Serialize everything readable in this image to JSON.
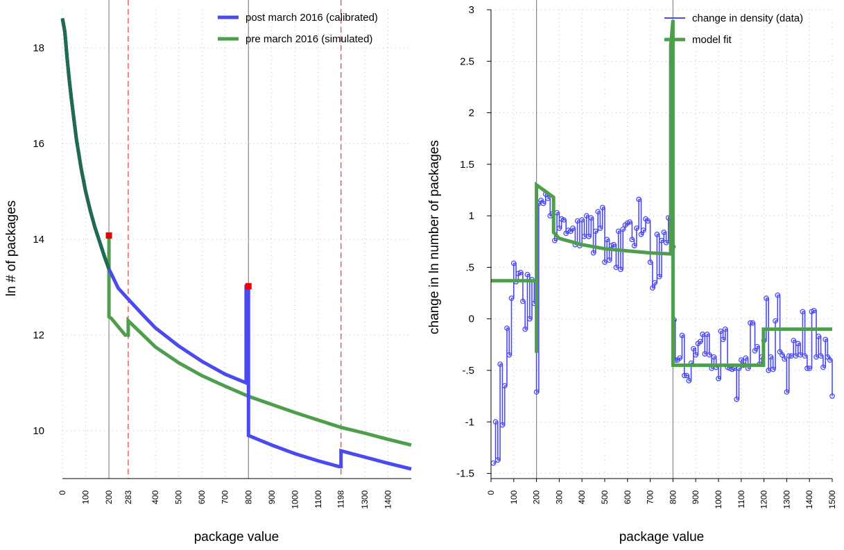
{
  "colors": {
    "post": "#4a4af0",
    "pre": "#4e9e4e",
    "shared": "#1e6b4e",
    "marker": "#ee0000",
    "vline": "#888888",
    "dashed": "#ee4444",
    "grid": "#bbbbbb"
  },
  "chart_data": [
    {
      "type": "line",
      "xlabel": "package value",
      "ylabel": "ln # of packages",
      "xlim": [
        0,
        1500
      ],
      "ylim": [
        9.0,
        18.8
      ],
      "xticks": [
        0,
        100,
        200,
        283,
        400,
        500,
        600,
        700,
        800,
        900,
        1000,
        1100,
        1198,
        1300,
        1400
      ],
      "yticks": [
        10,
        12,
        14,
        16,
        18
      ],
      "grid": true,
      "legend_position": "top-right",
      "vlines_solid": [
        200,
        800
      ],
      "vlines_dashed": [
        283,
        1198
      ],
      "series": [
        {
          "name": "post march 2016 (calibrated)",
          "color": "#4a4af0",
          "points": [
            [
              0,
              18.62
            ],
            [
              10,
              18.35
            ],
            [
              20,
              17.8
            ],
            [
              30,
              17.3
            ],
            [
              40,
              16.88
            ],
            [
              60,
              16.1
            ],
            [
              80,
              15.5
            ],
            [
              100,
              15.0
            ],
            [
              120,
              14.6
            ],
            [
              140,
              14.25
            ],
            [
              160,
              13.95
            ],
            [
              180,
              13.65
            ],
            [
              200,
              13.38
            ],
            [
              240,
              12.98
            ],
            [
              283,
              12.75
            ],
            [
              350,
              12.4
            ],
            [
              400,
              12.15
            ],
            [
              500,
              11.77
            ],
            [
              600,
              11.45
            ],
            [
              700,
              11.18
            ],
            [
              790,
              11.0
            ],
            [
              790,
              13.02
            ],
            [
              800,
              13.02
            ],
            [
              800,
              9.9
            ],
            [
              900,
              9.7
            ],
            [
              1000,
              9.52
            ],
            [
              1100,
              9.37
            ],
            [
              1190,
              9.25
            ],
            [
              1198,
              9.25
            ],
            [
              1198,
              9.58
            ],
            [
              1300,
              9.45
            ],
            [
              1400,
              9.32
            ],
            [
              1500,
              9.2
            ]
          ]
        },
        {
          "name": "pre march 2016 (simulated)",
          "color": "#4e9e4e",
          "points": [
            [
              0,
              18.62
            ],
            [
              10,
              18.35
            ],
            [
              20,
              17.8
            ],
            [
              30,
              17.3
            ],
            [
              40,
              16.88
            ],
            [
              60,
              16.1
            ],
            [
              80,
              15.5
            ],
            [
              100,
              15.0
            ],
            [
              120,
              14.6
            ],
            [
              140,
              14.25
            ],
            [
              160,
              13.95
            ],
            [
              180,
              13.65
            ],
            [
              200,
              13.38
            ],
            [
              200,
              14.08
            ],
            [
              200,
              12.38
            ],
            [
              210,
              12.35
            ],
            [
              270,
              12.0
            ],
            [
              283,
              12.0
            ],
            [
              283,
              12.3
            ],
            [
              300,
              12.22
            ],
            [
              400,
              11.75
            ],
            [
              500,
              11.42
            ],
            [
              600,
              11.15
            ],
            [
              700,
              10.93
            ],
            [
              800,
              10.72
            ],
            [
              900,
              10.55
            ],
            [
              1000,
              10.38
            ],
            [
              1100,
              10.22
            ],
            [
              1198,
              10.07
            ],
            [
              1300,
              9.95
            ],
            [
              1400,
              9.82
            ],
            [
              1500,
              9.7
            ]
          ]
        }
      ],
      "markers": [
        [
          200,
          14.08
        ],
        [
          800,
          13.02
        ]
      ]
    },
    {
      "type": "scatter",
      "xlabel": "package value",
      "ylabel": "change in ln number of packages",
      "xlim": [
        0,
        1500
      ],
      "ylim": [
        -1.55,
        3.0
      ],
      "xticks": [
        0,
        100,
        200,
        300,
        400,
        500,
        600,
        700,
        800,
        900,
        1000,
        1100,
        1200,
        1300,
        1400,
        1500
      ],
      "yticks": [
        -1.5,
        -1,
        -0.5,
        0,
        0.5,
        1,
        1.5,
        2,
        2.5,
        3
      ],
      "ytick_labels": [
        "-1.5",
        "-1",
        "-.5",
        "0",
        ".5",
        "1",
        "1.5",
        "2",
        "2.5",
        "3"
      ],
      "grid": true,
      "legend_position": "top-right",
      "vlines_solid": [
        200,
        800
      ],
      "series": [
        {
          "name": "change in density (data)",
          "color": "#4a4af0",
          "points": [
            [
              10,
              -1.4
            ],
            [
              20,
              -1.0
            ],
            [
              30,
              -1.37
            ],
            [
              40,
              -0.44
            ],
            [
              50,
              -1.03
            ],
            [
              60,
              -0.65
            ],
            [
              70,
              -0.09
            ],
            [
              80,
              -0.35
            ],
            [
              90,
              0.2
            ],
            [
              100,
              0.54
            ],
            [
              110,
              0.36
            ],
            [
              120,
              0.44
            ],
            [
              130,
              0.45
            ],
            [
              140,
              0.17
            ],
            [
              150,
              -0.1
            ],
            [
              160,
              0.43
            ],
            [
              170,
              0.0
            ],
            [
              180,
              0.38
            ],
            [
              190,
              0.15
            ],
            [
              200,
              -0.71
            ],
            [
              210,
              1.12
            ],
            [
              220,
              1.15
            ],
            [
              230,
              1.12
            ],
            [
              240,
              1.21
            ],
            [
              250,
              1.17
            ],
            [
              260,
              1.0
            ],
            [
              270,
              1.02
            ],
            [
              280,
              0.76
            ],
            [
              290,
              1.03
            ],
            [
              300,
              0.88
            ],
            [
              310,
              0.97
            ],
            [
              320,
              0.96
            ],
            [
              330,
              0.83
            ],
            [
              340,
              0.86
            ],
            [
              350,
              0.85
            ],
            [
              360,
              0.88
            ],
            [
              370,
              0.72
            ],
            [
              380,
              0.95
            ],
            [
              390,
              0.71
            ],
            [
              400,
              0.96
            ],
            [
              410,
              0.8
            ],
            [
              420,
              1.0
            ],
            [
              430,
              0.8
            ],
            [
              440,
              0.98
            ],
            [
              450,
              0.64
            ],
            [
              460,
              0.85
            ],
            [
              470,
              1.04
            ],
            [
              480,
              0.88
            ],
            [
              490,
              1.08
            ],
            [
              500,
              0.55
            ],
            [
              510,
              0.77
            ],
            [
              520,
              0.57
            ],
            [
              530,
              0.71
            ],
            [
              540,
              0.72
            ],
            [
              550,
              0.5
            ],
            [
              560,
              0.85
            ],
            [
              570,
              0.48
            ],
            [
              580,
              0.87
            ],
            [
              590,
              0.91
            ],
            [
              600,
              0.93
            ],
            [
              610,
              0.94
            ],
            [
              620,
              0.77
            ],
            [
              630,
              0.71
            ],
            [
              640,
              0.88
            ],
            [
              650,
              1.16
            ],
            [
              660,
              0.82
            ],
            [
              670,
              0.86
            ],
            [
              680,
              0.97
            ],
            [
              690,
              0.95
            ],
            [
              700,
              0.55
            ],
            [
              710,
              0.3
            ],
            [
              720,
              0.35
            ],
            [
              730,
              0.82
            ],
            [
              740,
              0.41
            ],
            [
              750,
              0.76
            ],
            [
              760,
              0.84
            ],
            [
              770,
              0.74
            ],
            [
              780,
              0.98
            ],
            [
              790,
              0.98
            ],
            [
              800,
              0.7
            ],
            [
              805,
              -0.01
            ],
            [
              810,
              -0.4
            ],
            [
              820,
              -0.4
            ],
            [
              830,
              -0.38
            ],
            [
              840,
              -0.16
            ],
            [
              850,
              -0.55
            ],
            [
              860,
              -0.55
            ],
            [
              870,
              -0.6
            ],
            [
              880,
              -0.43
            ],
            [
              890,
              -0.29
            ],
            [
              900,
              -0.35
            ],
            [
              910,
              -0.24
            ],
            [
              920,
              -0.22
            ],
            [
              930,
              -0.15
            ],
            [
              940,
              -0.34
            ],
            [
              950,
              -0.15
            ],
            [
              960,
              -0.35
            ],
            [
              970,
              -0.48
            ],
            [
              980,
              -0.37
            ],
            [
              990,
              -0.47
            ],
            [
              1000,
              -0.58
            ],
            [
              1010,
              -0.12
            ],
            [
              1020,
              -0.2
            ],
            [
              1030,
              -0.1
            ],
            [
              1040,
              -0.47
            ],
            [
              1050,
              -0.48
            ],
            [
              1060,
              -0.49
            ],
            [
              1070,
              -0.48
            ],
            [
              1080,
              -0.78
            ],
            [
              1090,
              -0.48
            ],
            [
              1100,
              -0.4
            ],
            [
              1110,
              -0.45
            ],
            [
              1120,
              -0.38
            ],
            [
              1130,
              -0.48
            ],
            [
              1140,
              -0.04
            ],
            [
              1150,
              -0.04
            ],
            [
              1160,
              -0.31
            ],
            [
              1170,
              -0.27
            ],
            [
              1180,
              -0.44
            ],
            [
              1190,
              -0.37
            ],
            [
              1200,
              -0.21
            ],
            [
              1210,
              0.2
            ],
            [
              1220,
              -0.5
            ],
            [
              1230,
              -0.37
            ],
            [
              1240,
              -0.49
            ],
            [
              1250,
              -0.02
            ],
            [
              1260,
              0.23
            ],
            [
              1270,
              -0.32
            ],
            [
              1280,
              -0.35
            ],
            [
              1290,
              -0.39
            ],
            [
              1300,
              -0.71
            ],
            [
              1310,
              -0.36
            ],
            [
              1320,
              -0.36
            ],
            [
              1330,
              -0.21
            ],
            [
              1340,
              -0.36
            ],
            [
              1350,
              -0.24
            ],
            [
              1360,
              -0.35
            ],
            [
              1370,
              0.07
            ],
            [
              1380,
              -0.36
            ],
            [
              1390,
              -0.48
            ],
            [
              1400,
              -0.48
            ],
            [
              1410,
              0.07
            ],
            [
              1420,
              0.08
            ],
            [
              1430,
              -0.37
            ],
            [
              1440,
              -0.17
            ],
            [
              1450,
              -0.36
            ],
            [
              1460,
              -0.47
            ],
            [
              1470,
              -0.2
            ],
            [
              1480,
              -0.37
            ],
            [
              1490,
              -0.4
            ],
            [
              1500,
              -0.75
            ]
          ]
        },
        {
          "name": "model fit",
          "color": "#4e9e4e",
          "points": [
            [
              0,
              0.37
            ],
            [
              200,
              0.37
            ],
            [
              200,
              -0.33
            ],
            [
              200,
              1.3
            ],
            [
              275,
              1.18
            ],
            [
              275,
              0.84
            ],
            [
              300,
              0.78
            ],
            [
              400,
              0.72
            ],
            [
              500,
              0.68
            ],
            [
              600,
              0.66
            ],
            [
              700,
              0.64
            ],
            [
              790,
              0.63
            ],
            [
              790,
              2.65
            ],
            [
              800,
              2.9
            ],
            [
              800,
              -0.45
            ],
            [
              1198,
              -0.45
            ],
            [
              1198,
              -0.1
            ],
            [
              1500,
              -0.1
            ]
          ]
        }
      ]
    }
  ]
}
